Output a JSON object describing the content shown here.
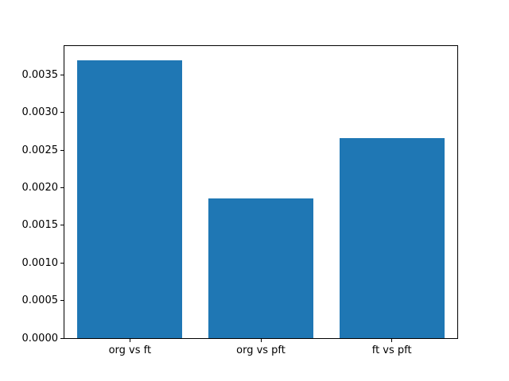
{
  "figure": {
    "background": "#ffffff"
  },
  "chart_data": {
    "type": "bar",
    "title": "",
    "xlabel": "",
    "ylabel": "",
    "categories": [
      "org vs ft",
      "org vs pft",
      "ft vs pft"
    ],
    "values": [
      0.0037,
      0.00186,
      0.00266
    ],
    "ytick_labels": [
      "0.0000",
      "0.0005",
      "0.0010",
      "0.0015",
      "0.0020",
      "0.0025",
      "0.0030",
      "0.0035"
    ],
    "ylim": [
      0,
      0.003885
    ],
    "xlim": [
      -0.5,
      2.5
    ],
    "bar_width_fraction": 0.8,
    "bar_color": "#1f77b4",
    "axis_color": "#000000",
    "text_color": "#000000",
    "grid": false,
    "legend": "none"
  }
}
